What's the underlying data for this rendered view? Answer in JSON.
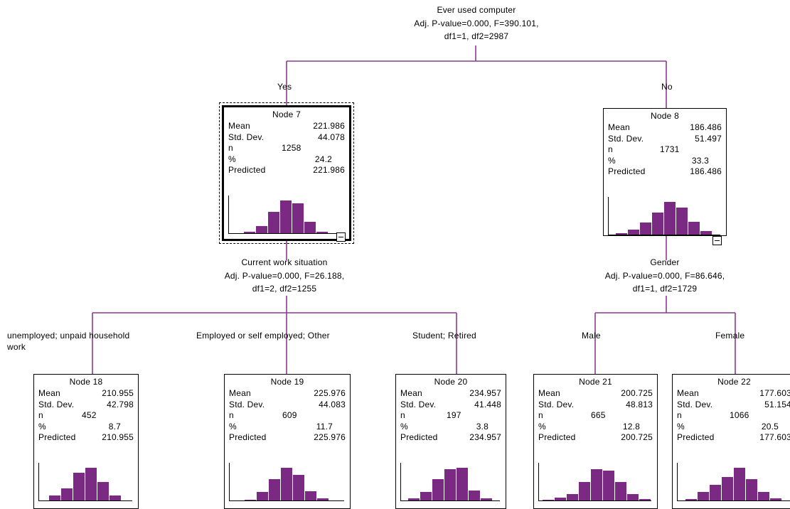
{
  "colors": {
    "edge": "#8B3A8E",
    "bar": "#7A2A82",
    "axis": "#000000"
  },
  "root_split": {
    "variable": "Ever used computer",
    "stats": "Adj. P-value=0.000, F=390.101,",
    "df": "df1=1, df2=2987"
  },
  "branches": {
    "yes": "Yes",
    "no": "No",
    "unemployed": "unemployed; unpaid household",
    "unemployed_cont": "work",
    "employed": "Employed or self employed; Other",
    "student": "Student; Retired",
    "male": "Male",
    "female": "Female"
  },
  "splits": {
    "work": {
      "variable": "Current work situation",
      "stats": "Adj. P-value=0.000, F=26.188,",
      "df": "df1=2, df2=1255"
    },
    "gender": {
      "variable": "Gender",
      "stats": "Adj. P-value=0.000, F=86.646,",
      "df": "df1=1, df2=1729"
    }
  },
  "stat_labels": {
    "mean": "Mean",
    "sd": "Std. Dev.",
    "n": "n",
    "pct": "%",
    "pred": "Predicted"
  },
  "nodes": {
    "n7": {
      "title": "Node 7",
      "mean": "221.986",
      "sd": "44.078",
      "n": "1258",
      "pct": "24.2",
      "pred": "221.986",
      "histogram": [
        0.05,
        0.2,
        0.62,
        0.95,
        0.88,
        0.33,
        0.04
      ],
      "selected": true
    },
    "n8": {
      "title": "Node 8",
      "mean": "186.486",
      "sd": "51.497",
      "n": "1731",
      "pct": "33.3",
      "pred": "186.486",
      "histogram": [
        0.05,
        0.14,
        0.36,
        0.65,
        0.95,
        0.8,
        0.38,
        0.1
      ]
    },
    "n18": {
      "title": "Node 18",
      "mean": "210.955",
      "sd": "42.798",
      "n": "452",
      "pct": "8.7",
      "pred": "210.955",
      "histogram": [
        0.15,
        0.35,
        0.82,
        0.95,
        0.55,
        0.15
      ]
    },
    "n19": {
      "title": "Node 19",
      "mean": "225.976",
      "sd": "44.083",
      "n": "609",
      "pct": "11.7",
      "pred": "225.976",
      "histogram": [
        0.03,
        0.25,
        0.62,
        0.95,
        0.75,
        0.28,
        0.06
      ]
    },
    "n20": {
      "title": "Node 20",
      "mean": "234.957",
      "sd": "41.448",
      "n": "197",
      "pct": "3.8",
      "pred": "234.957",
      "histogram": [
        0.06,
        0.25,
        0.62,
        0.92,
        0.95,
        0.3,
        0.07
      ]
    },
    "n21": {
      "title": "Node 21",
      "mean": "200.725",
      "sd": "48.813",
      "n": "665",
      "pct": "12.8",
      "pred": "200.725",
      "histogram": [
        0.03,
        0.08,
        0.18,
        0.55,
        0.92,
        0.88,
        0.55,
        0.18,
        0.04
      ]
    },
    "n22": {
      "title": "Node 22",
      "mean": "177.603",
      "sd": "51.154",
      "n": "1066",
      "pct": "20.5",
      "pred": "177.603",
      "histogram": [
        0.05,
        0.25,
        0.45,
        0.68,
        0.95,
        0.62,
        0.25,
        0.06
      ]
    }
  }
}
